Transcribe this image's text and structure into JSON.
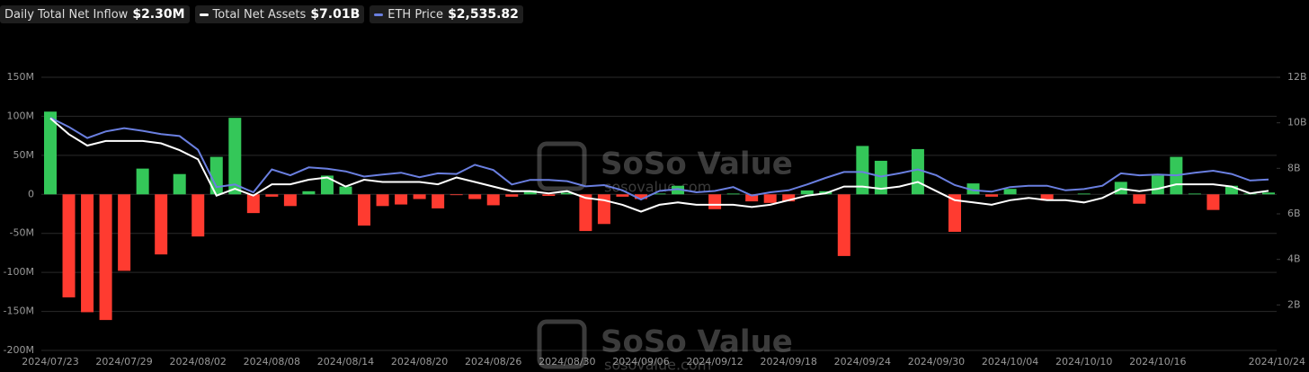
{
  "chart_data": {
    "type": "bar",
    "watermark": {
      "brand": "SoSo Value",
      "site": "sosovalue.com"
    },
    "categories": [
      "2024/07/23",
      null,
      null,
      null,
      "2024/07/29",
      null,
      null,
      null,
      "2024/08/02",
      null,
      null,
      null,
      "2024/08/08",
      null,
      null,
      null,
      "2024/08/14",
      null,
      null,
      null,
      "2024/08/20",
      null,
      null,
      null,
      "2024/08/26",
      null,
      null,
      null,
      "2024/08/30",
      null,
      null,
      null,
      "2024/09/06",
      null,
      null,
      null,
      "2024/09/12",
      null,
      null,
      null,
      "2024/09/18",
      null,
      null,
      null,
      "2024/09/24",
      null,
      null,
      null,
      "2024/09/30",
      null,
      null,
      null,
      "2024/10/04",
      null,
      null,
      null,
      "2024/10/10",
      null,
      null,
      null,
      "2024/10/16",
      null,
      null,
      null,
      null,
      null,
      "2024/10/24"
    ],
    "series": [
      {
        "name": "Daily Total Net Inflow",
        "latest": "$2.30M",
        "type": "bar",
        "positive_color": "#34c759",
        "negative_color": "#ff3b30",
        "values": [
          106,
          -132,
          -151,
          -161,
          -98,
          33,
          -77,
          26,
          -54,
          48,
          98,
          -24,
          -3,
          -15,
          4,
          24,
          10,
          -40,
          -15,
          -13,
          -6,
          -18,
          -1,
          -6,
          -14,
          -3,
          5,
          -2,
          2,
          -47,
          -38,
          -3,
          -6,
          1,
          11,
          0,
          -19,
          1,
          -9,
          -11,
          -9,
          5,
          4,
          -79,
          62,
          43,
          0,
          58,
          0,
          -48,
          14,
          -3,
          7,
          0,
          -8,
          0,
          1,
          0,
          16,
          -12,
          24,
          48,
          1,
          -20,
          11,
          1,
          2.3
        ]
      },
      {
        "name": "Total Net Assets",
        "latest": "$7.01B",
        "type": "line",
        "axis": "y2",
        "color": "#ffffff",
        "values": [
          10.2,
          9.5,
          9.0,
          9.2,
          9.2,
          9.2,
          9.1,
          8.8,
          8.4,
          6.8,
          7.1,
          6.8,
          7.3,
          7.3,
          7.5,
          7.6,
          7.2,
          7.5,
          7.4,
          7.4,
          7.4,
          7.3,
          7.6,
          7.4,
          7.2,
          7.0,
          7.0,
          6.9,
          7.0,
          6.7,
          6.6,
          6.4,
          6.1,
          6.4,
          6.5,
          6.4,
          6.4,
          6.4,
          6.3,
          6.4,
          6.6,
          6.8,
          6.9,
          7.2,
          7.2,
          7.1,
          7.2,
          7.4,
          7.0,
          6.6,
          6.5,
          6.4,
          6.6,
          6.7,
          6.6,
          6.6,
          6.5,
          6.7,
          7.1,
          7.0,
          7.1,
          7.3,
          7.3,
          7.3,
          7.2,
          6.9,
          7.01
        ]
      },
      {
        "name": "ETH Price",
        "latest": "$2,535.82",
        "type": "line",
        "axis": "y3",
        "color": "#6a7fe0",
        "values": [
          3480,
          3340,
          3170,
          3270,
          3320,
          3280,
          3230,
          3200,
          2990,
          2420,
          2460,
          2340,
          2690,
          2600,
          2720,
          2700,
          2660,
          2580,
          2610,
          2640,
          2570,
          2630,
          2620,
          2760,
          2680,
          2460,
          2530,
          2530,
          2510,
          2430,
          2450,
          2370,
          2230,
          2360,
          2390,
          2340,
          2360,
          2420,
          2290,
          2340,
          2370,
          2460,
          2560,
          2650,
          2650,
          2580,
          2630,
          2690,
          2600,
          2450,
          2370,
          2350,
          2420,
          2440,
          2440,
          2370,
          2390,
          2440,
          2630,
          2600,
          2610,
          2600,
          2640,
          2670,
          2620,
          2520,
          2535.82
        ]
      }
    ],
    "ylim": [
      -200,
      150
    ],
    "yticks": [
      {
        "value": -200,
        "label": "-200M"
      },
      {
        "value": -150,
        "label": "-150M"
      },
      {
        "value": -100,
        "label": "-100M"
      },
      {
        "value": -50,
        "label": "-50M"
      },
      0,
      {
        "value": 50,
        "label": "50M"
      },
      {
        "value": 100,
        "label": "100M"
      },
      {
        "value": 150,
        "label": "150M"
      }
    ],
    "y2lim": [
      0,
      12
    ],
    "y2ticks": [
      {
        "value": 2,
        "label": "2B"
      },
      {
        "value": 4,
        "label": "4B"
      },
      {
        "value": 6,
        "label": "6B"
      },
      {
        "value": 8,
        "label": "8B"
      },
      {
        "value": 10,
        "label": "10B"
      },
      {
        "value": 12,
        "label": "12B"
      }
    ],
    "grid": true
  }
}
